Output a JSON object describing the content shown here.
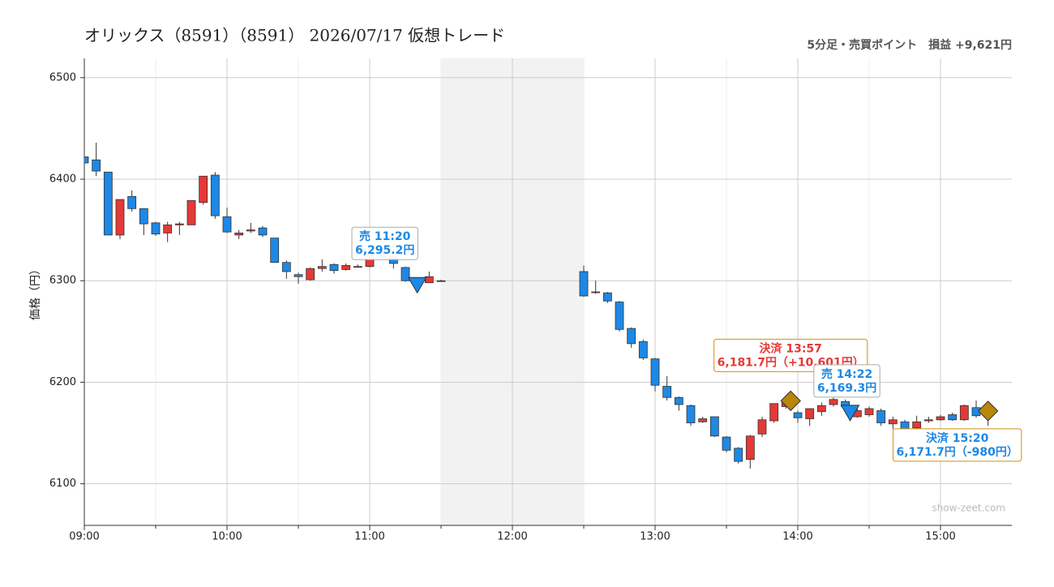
{
  "chart_data": {
    "type": "candlestick",
    "title": "オリックス（8591）（8591） 2026/07/17 仮想トレード",
    "subtitle": "5分足・売買ポイント　損益 +9,621円",
    "y_label": "価格（円）",
    "watermark": "show-zeet.com",
    "x": [
      "09:00",
      "09:05",
      "09:10",
      "09:15",
      "09:20",
      "09:25",
      "09:30",
      "09:35",
      "09:40",
      "09:45",
      "09:50",
      "09:55",
      "10:00",
      "10:05",
      "10:10",
      "10:15",
      "10:20",
      "10:25",
      "10:30",
      "10:35",
      "10:40",
      "10:45",
      "10:50",
      "10:55",
      "11:00",
      "11:05",
      "11:10",
      "11:15",
      "11:20",
      "11:25",
      "11:30",
      "12:30",
      "12:35",
      "12:40",
      "12:45",
      "12:50",
      "12:55",
      "13:00",
      "13:05",
      "13:10",
      "13:15",
      "13:20",
      "13:25",
      "13:30",
      "13:35",
      "13:40",
      "13:45",
      "13:50",
      "13:55",
      "14:00",
      "14:05",
      "14:10",
      "14:15",
      "14:20",
      "14:25",
      "14:30",
      "14:35",
      "14:40",
      "14:45",
      "14:50",
      "14:55",
      "15:00",
      "15:05",
      "15:10",
      "15:15",
      "15:20"
    ],
    "open": [
      6422,
      6419,
      6407,
      6345,
      6383,
      6371,
      6357,
      6347,
      6355,
      6355,
      6377,
      6404,
      6363,
      6345,
      6349,
      6352,
      6342,
      6318,
      6306,
      6301,
      6312,
      6316,
      6311,
      6314,
      6314,
      6329,
      6324,
      6313,
      6301,
      6298,
      6300,
      6309,
      6289,
      6288,
      6279,
      6253,
      6240,
      6223,
      6196,
      6185,
      6177,
      6161,
      6166,
      6146,
      6135,
      6124,
      6149,
      6162,
      6176,
      6170,
      6164,
      6171,
      6178,
      6181,
      6166,
      6168,
      6172,
      6159,
      6161,
      6155,
      6162,
      6163,
      6168,
      6163,
      6175,
      6170
    ],
    "high": [
      6423,
      6436,
      6407,
      6380,
      6389,
      6371,
      6358,
      6358,
      6358,
      6379,
      6403,
      6407,
      6372,
      6350,
      6357,
      6354,
      6342,
      6320,
      6308,
      6313,
      6321,
      6317,
      6317,
      6316,
      6329,
      6330,
      6325,
      6314,
      6302,
      6309,
      6301,
      6315,
      6300,
      6289,
      6280,
      6254,
      6242,
      6224,
      6206,
      6186,
      6178,
      6166,
      6166,
      6147,
      6136,
      6148,
      6166,
      6179,
      6182,
      6172,
      6174,
      6180,
      6185,
      6183,
      6175,
      6176,
      6174,
      6166,
      6163,
      6167,
      6166,
      6168,
      6170,
      6178,
      6182,
      6174
    ],
    "low": [
      6415,
      6403,
      6345,
      6341,
      6368,
      6345,
      6344,
      6338,
      6345,
      6355,
      6375,
      6361,
      6347,
      6341,
      6347,
      6343,
      6318,
      6302,
      6297,
      6300,
      6309,
      6307,
      6310,
      6313,
      6313,
      6322,
      6312,
      6299,
      6299,
      6298,
      6299,
      6284,
      6287,
      6278,
      6250,
      6234,
      6222,
      6191,
      6182,
      6172,
      6157,
      6160,
      6146,
      6131,
      6120,
      6115,
      6146,
      6160,
      6174,
      6160,
      6157,
      6167,
      6176,
      6173,
      6165,
      6166,
      6157,
      6154,
      6152,
      6152,
      6160,
      6162,
      6162,
      6162,
      6165,
      6157
    ],
    "close": [
      6416,
      6408,
      6345,
      6380,
      6371,
      6356,
      6346,
      6355,
      6356,
      6379,
      6403,
      6364,
      6348,
      6347,
      6350,
      6345,
      6318,
      6309,
      6304,
      6312,
      6314,
      6310,
      6315,
      6314,
      6328,
      6323,
      6317,
      6300,
      6300,
      6304,
      6300,
      6285,
      6289,
      6280,
      6252,
      6238,
      6224,
      6197,
      6185,
      6178,
      6160,
      6164,
      6147,
      6133,
      6122,
      6147,
      6163,
      6179,
      6180,
      6165,
      6174,
      6177,
      6183,
      6176,
      6172,
      6174,
      6160,
      6163,
      6154,
      6161,
      6163,
      6166,
      6163,
      6177,
      6167,
      6172
    ],
    "up_color": "#e53935",
    "down_color": "#1e88e5",
    "xlim": [
      "09:00",
      "15:30"
    ],
    "xticks": [
      "09:00",
      "10:00",
      "11:00",
      "12:00",
      "13:00",
      "14:00",
      "15:00"
    ],
    "ylim": [
      6059,
      6519
    ],
    "yticks": [
      6100,
      6200,
      6300,
      6400,
      6500
    ],
    "grid": true,
    "break": [
      "11:30",
      "12:30"
    ],
    "trades": [
      {
        "kind": "sell",
        "label": "売 11:20",
        "x": "11:20",
        "price": 6295.2,
        "price_label": "6,295.2円",
        "color": "#1e88e5"
      },
      {
        "kind": "settle",
        "label": "決済 13:57",
        "x": "13:57",
        "price": 6181.7,
        "price_label": "6,181.7円（+10,601円）",
        "color": "#e53935"
      },
      {
        "kind": "sell",
        "label": "売 14:22",
        "x": "14:22",
        "price": 6169.3,
        "price_label": "6,169.3円",
        "color": "#1e88e5"
      },
      {
        "kind": "settle",
        "label": "決済 15:20",
        "x": "15:20",
        "price": 6171.7,
        "price_label": "6,171.7円（-980円）",
        "color": "#1e88e5"
      }
    ]
  }
}
